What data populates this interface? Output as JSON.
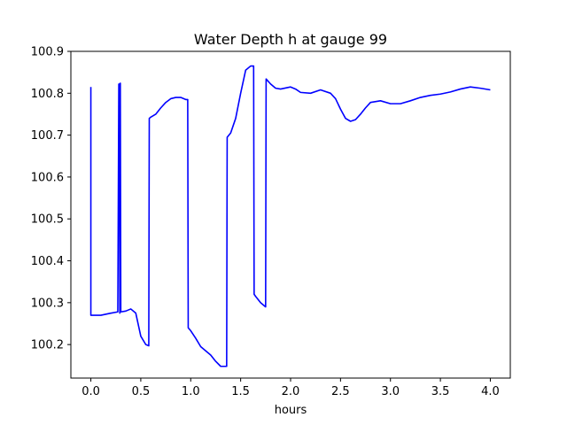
{
  "chart_data": {
    "type": "line",
    "title": "Water Depth h at gauge 99",
    "xlabel": "hours",
    "ylabel": "",
    "xlim": [
      -0.2,
      4.2
    ],
    "ylim": [
      100.12,
      100.9
    ],
    "xticks": [
      0.0,
      0.5,
      1.0,
      1.5,
      2.0,
      2.5,
      3.0,
      3.5,
      4.0
    ],
    "xtick_labels": [
      "0.0",
      "0.5",
      "1.0",
      "1.5",
      "2.0",
      "2.5",
      "3.0",
      "3.5",
      "4.0"
    ],
    "yticks": [
      100.2,
      100.3,
      100.4,
      100.5,
      100.6,
      100.7,
      100.8,
      100.9
    ],
    "ytick_labels": [
      "100.2",
      "100.3",
      "100.4",
      "100.5",
      "100.6",
      "100.7",
      "100.8",
      "100.9"
    ],
    "grid": false,
    "series": [
      {
        "color": "#0000ff",
        "x": [
          0.0,
          0.0,
          0.1,
          0.2,
          0.27,
          0.28,
          0.285,
          0.29,
          0.295,
          0.3,
          0.35,
          0.4,
          0.45,
          0.5,
          0.55,
          0.58,
          0.585,
          0.6,
          0.65,
          0.7,
          0.75,
          0.8,
          0.85,
          0.9,
          0.95,
          0.97,
          0.975,
          1.0,
          1.05,
          1.1,
          1.15,
          1.2,
          1.25,
          1.3,
          1.36,
          1.365,
          1.4,
          1.45,
          1.5,
          1.55,
          1.6,
          1.63,
          1.635,
          1.65,
          1.7,
          1.75,
          1.755,
          1.8,
          1.85,
          1.9,
          2.0,
          2.05,
          2.1,
          2.2,
          2.3,
          2.4,
          2.45,
          2.5,
          2.55,
          2.6,
          2.65,
          2.7,
          2.75,
          2.8,
          2.9,
          3.0,
          3.1,
          3.2,
          3.3,
          3.4,
          3.5,
          3.6,
          3.7,
          3.8,
          3.9,
          4.0
        ],
        "y": [
          100.815,
          100.27,
          100.27,
          100.275,
          100.278,
          100.822,
          100.822,
          100.275,
          100.824,
          100.278,
          100.28,
          100.285,
          100.275,
          100.22,
          100.2,
          100.197,
          100.74,
          100.743,
          100.75,
          100.765,
          100.778,
          100.787,
          100.79,
          100.79,
          100.785,
          100.785,
          100.24,
          100.233,
          100.215,
          100.195,
          100.185,
          100.175,
          100.16,
          100.148,
          100.148,
          100.695,
          100.705,
          100.74,
          100.8,
          100.855,
          100.865,
          100.865,
          100.32,
          100.315,
          100.3,
          100.29,
          100.834,
          100.822,
          100.812,
          100.81,
          100.815,
          100.81,
          100.802,
          100.8,
          100.808,
          100.8,
          100.787,
          100.762,
          100.74,
          100.733,
          100.737,
          100.75,
          100.765,
          100.778,
          100.782,
          100.775,
          100.775,
          100.782,
          100.79,
          100.795,
          100.798,
          100.803,
          100.81,
          100.815,
          100.812,
          100.808
        ]
      }
    ]
  }
}
